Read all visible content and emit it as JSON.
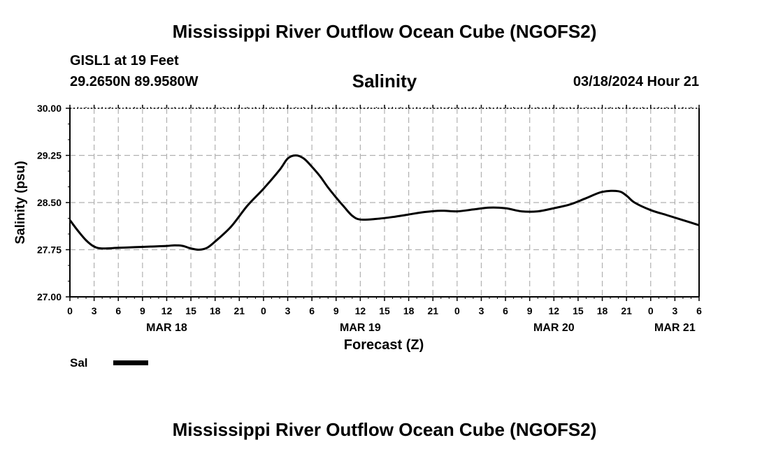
{
  "header": {
    "title_top": "Mississippi River Outflow Ocean Cube (NGOFS2)",
    "station_name": "GISL1 at 19 Feet",
    "station_coords": "29.2650N  89.9580W",
    "timestamp": "03/18/2024 Hour 21"
  },
  "footer": {
    "title_bottom": "Mississippi River Outflow Ocean Cube (NGOFS2)"
  },
  "colors": {
    "line": "#000000",
    "grid": "#b0b0b0",
    "background": "#ffffff"
  },
  "chart_data": {
    "type": "line",
    "title": "Salinity",
    "xlabel": "Forecast (Z)",
    "ylabel": "Salinity (psu)",
    "ylim": [
      27.0,
      30.0
    ],
    "yticks": [
      "30.00",
      "29.25",
      "28.50",
      "27.75",
      "27.00"
    ],
    "ytick_values": [
      30.0,
      29.25,
      28.5,
      27.75,
      27.0
    ],
    "xlim": [
      0,
      78
    ],
    "xtick_hours": [
      0,
      3,
      6,
      9,
      12,
      15,
      18,
      21,
      24,
      27,
      30,
      33,
      36,
      39,
      42,
      45,
      48,
      51,
      54,
      57,
      60,
      63,
      66,
      69,
      72,
      75,
      78
    ],
    "xtick_labels": [
      "0",
      "3",
      "6",
      "9",
      "12",
      "15",
      "18",
      "21",
      "0",
      "3",
      "6",
      "9",
      "12",
      "15",
      "18",
      "21",
      "0",
      "3",
      "6",
      "9",
      "12",
      "15",
      "18",
      "21",
      "0",
      "3",
      "6"
    ],
    "date_labels": [
      {
        "label": "MAR 18",
        "hour": 12
      },
      {
        "label": "MAR 19",
        "hour": 36
      },
      {
        "label": "MAR 20",
        "hour": 60
      },
      {
        "label": "MAR 21",
        "hour": 75
      }
    ],
    "grid": true,
    "legend": [
      {
        "name": "Sal",
        "style": "solid thick"
      }
    ],
    "series": [
      {
        "name": "Sal",
        "x": [
          0,
          1,
          2,
          3,
          4,
          6,
          8,
          10,
          12,
          13,
          14,
          15,
          16,
          17,
          18,
          20,
          22,
          24,
          26,
          27,
          28,
          29,
          30,
          31,
          32,
          33,
          34,
          35,
          36,
          38,
          40,
          42,
          44,
          46,
          48,
          50,
          52,
          54,
          56,
          58,
          60,
          62,
          64,
          66,
          68,
          69,
          70,
          72,
          74,
          76,
          78
        ],
        "values": [
          28.22,
          28.05,
          27.9,
          27.8,
          27.77,
          27.78,
          27.79,
          27.8,
          27.81,
          27.82,
          27.81,
          27.77,
          27.75,
          27.78,
          27.88,
          28.12,
          28.45,
          28.72,
          29.02,
          29.2,
          29.25,
          29.2,
          29.07,
          28.92,
          28.74,
          28.58,
          28.43,
          28.29,
          28.23,
          28.24,
          28.27,
          28.31,
          28.35,
          28.37,
          28.36,
          28.39,
          28.42,
          28.41,
          28.36,
          28.36,
          28.41,
          28.47,
          28.57,
          28.67,
          28.68,
          28.61,
          28.5,
          28.38,
          28.3,
          28.22,
          28.14
        ]
      }
    ]
  }
}
